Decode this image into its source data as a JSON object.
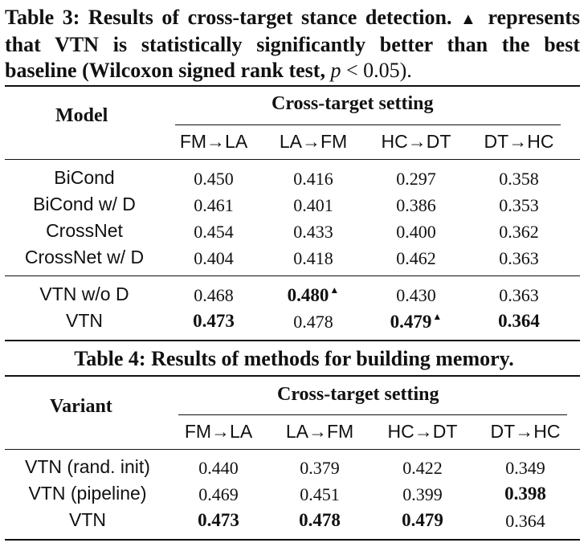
{
  "table3": {
    "caption_prefix": "Table 3: Results of cross-target stance detection.",
    "caption_marker": "▲",
    "caption_mid": "represents that VTN is statistically significantly better than the best baseline (Wilcoxon signed rank test,",
    "caption_p": "p",
    "caption_end": "< 0.05).",
    "header_model": "Model",
    "header_setting": "Cross-target setting",
    "columns": [
      "FM→LA",
      "LA→FM",
      "HC→DT",
      "DT→HC"
    ],
    "rows": [
      {
        "label": "BiCond",
        "values": [
          "0.450",
          "0.416",
          "0.297",
          "0.358"
        ],
        "bold": [
          false,
          false,
          false,
          false
        ],
        "sig": [
          false,
          false,
          false,
          false
        ]
      },
      {
        "label": "BiCond w/ D",
        "values": [
          "0.461",
          "0.401",
          "0.386",
          "0.353"
        ],
        "bold": [
          false,
          false,
          false,
          false
        ],
        "sig": [
          false,
          false,
          false,
          false
        ]
      },
      {
        "label": "CrossNet",
        "values": [
          "0.454",
          "0.433",
          "0.400",
          "0.362"
        ],
        "bold": [
          false,
          false,
          false,
          false
        ],
        "sig": [
          false,
          false,
          false,
          false
        ]
      },
      {
        "label": "CrossNet w/ D",
        "values": [
          "0.404",
          "0.418",
          "0.462",
          "0.363"
        ],
        "bold": [
          false,
          false,
          false,
          false
        ],
        "sig": [
          false,
          false,
          false,
          false
        ]
      },
      {
        "label": "VTN w/o D",
        "values": [
          "0.468",
          "0.480",
          "0.430",
          "0.363"
        ],
        "bold": [
          false,
          true,
          false,
          false
        ],
        "sig": [
          false,
          true,
          false,
          false
        ]
      },
      {
        "label": "VTN",
        "values": [
          "0.473",
          "0.478",
          "0.479",
          "0.364"
        ],
        "bold": [
          true,
          false,
          true,
          true
        ],
        "sig": [
          false,
          false,
          true,
          false
        ]
      }
    ],
    "sig_marker": "▲"
  },
  "table4": {
    "caption": "Table 4: Results of methods for building memory.",
    "header_variant": "Variant",
    "header_setting": "Cross-target setting",
    "columns": [
      "FM→LA",
      "LA→FM",
      "HC→DT",
      "DT→HC"
    ],
    "rows": [
      {
        "label": "VTN (rand. init)",
        "values": [
          "0.440",
          "0.379",
          "0.422",
          "0.349"
        ],
        "bold": [
          false,
          false,
          false,
          false
        ]
      },
      {
        "label": "VTN (pipeline)",
        "values": [
          "0.469",
          "0.451",
          "0.399",
          "0.398"
        ],
        "bold": [
          false,
          false,
          false,
          true
        ]
      },
      {
        "label": "VTN",
        "values": [
          "0.473",
          "0.478",
          "0.479",
          "0.364"
        ],
        "bold": [
          true,
          true,
          true,
          false
        ]
      }
    ]
  }
}
